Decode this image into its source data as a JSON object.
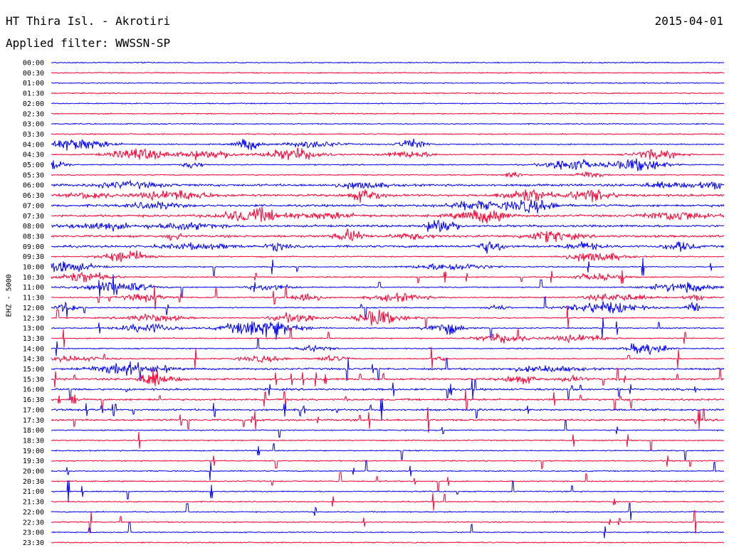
{
  "header": {
    "station": "HT Thira Isl. - Akrotiri",
    "date": "2015-04-01",
    "filter": "Applied filter: WWSSN-SP"
  },
  "chart_data": {
    "type": "helicorder",
    "ylabel": "EHZ - 5000",
    "colors": [
      "#0000ff",
      "#ff0033"
    ],
    "rows": [
      "00:00",
      "00:30",
      "01:00",
      "01:30",
      "02:00",
      "02:30",
      "03:00",
      "03:30",
      "04:00",
      "04:30",
      "05:00",
      "05:30",
      "06:00",
      "06:30",
      "07:00",
      "07:30",
      "08:00",
      "08:30",
      "09:00",
      "09:30",
      "10:00",
      "10:30",
      "11:00",
      "11:30",
      "12:00",
      "12:30",
      "13:00",
      "13:30",
      "14:00",
      "14:30",
      "15:00",
      "15:30",
      "16:00",
      "16:30",
      "17:00",
      "17:30",
      "18:00",
      "18:30",
      "19:00",
      "19:30",
      "20:00",
      "20:30",
      "21:00",
      "21:30",
      "22:00",
      "22:30",
      "23:00",
      "23:30"
    ]
  }
}
